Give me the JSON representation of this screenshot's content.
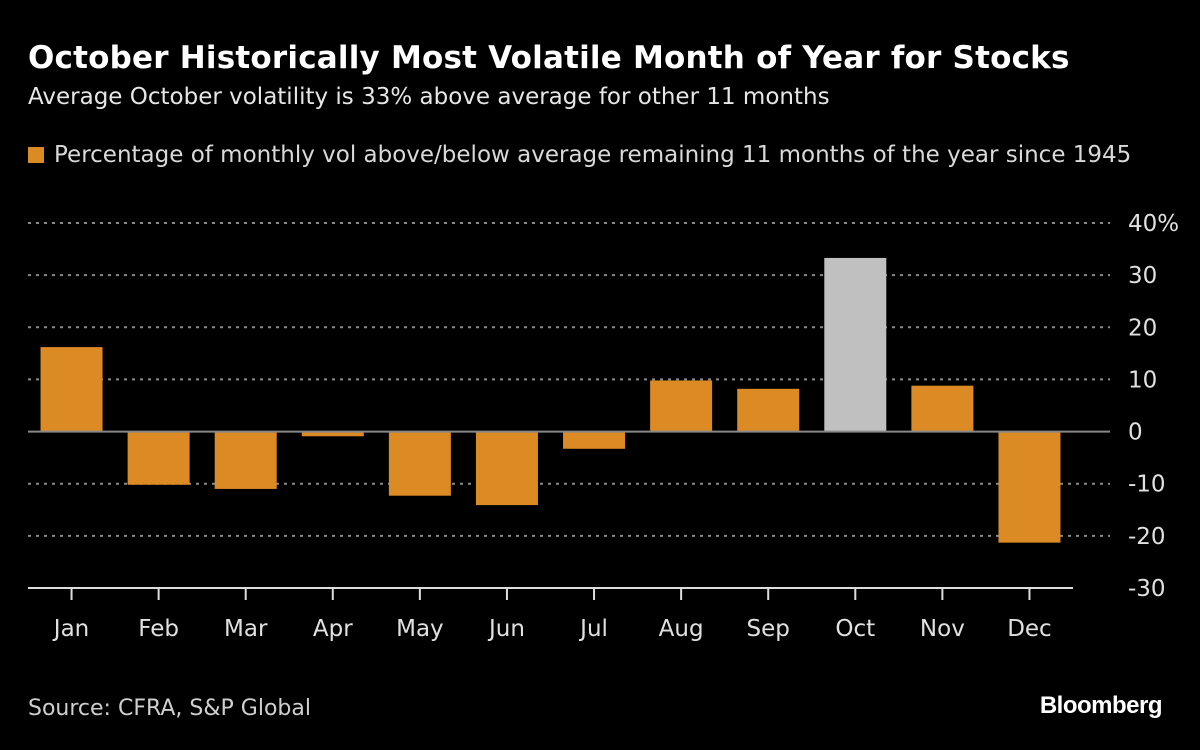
{
  "header": {
    "title": "October Historically Most Volatile Month of Year for Stocks",
    "subtitle": "Average October volatility is 33% above average for other 11 months"
  },
  "footer": {
    "source": "Source: CFRA, S&P Global",
    "logo": "Bloomberg"
  },
  "colors": {
    "primary": "#DB8A24",
    "highlight": "#C0C0C0",
    "background": "#000000"
  },
  "chart_data": {
    "type": "bar",
    "categories": [
      "Jan",
      "Feb",
      "Mar",
      "Apr",
      "May",
      "Jun",
      "Jul",
      "Aug",
      "Sep",
      "Oct",
      "Nov",
      "Dec"
    ],
    "series": [
      {
        "name": "Percentage of monthly vol above/below average remaining 11 months of the year since 1945",
        "values": [
          16.2,
          -10.2,
          -11.0,
          -0.9,
          -12.3,
          -14.1,
          -3.3,
          9.8,
          8.2,
          33.3,
          8.8,
          -21.3
        ]
      }
    ],
    "highlight_category": "Oct",
    "ylim": [
      -30,
      40
    ],
    "yticks": [
      40,
      30,
      20,
      10,
      0,
      -10,
      -20,
      -30
    ],
    "ytick_labels": [
      "40%",
      "30",
      "20",
      "10",
      "0",
      "-10",
      "-20",
      "-30"
    ],
    "y_axis_position": "right",
    "grid": true,
    "legend_position": "top-left",
    "xlabel": "",
    "ylabel": ""
  }
}
